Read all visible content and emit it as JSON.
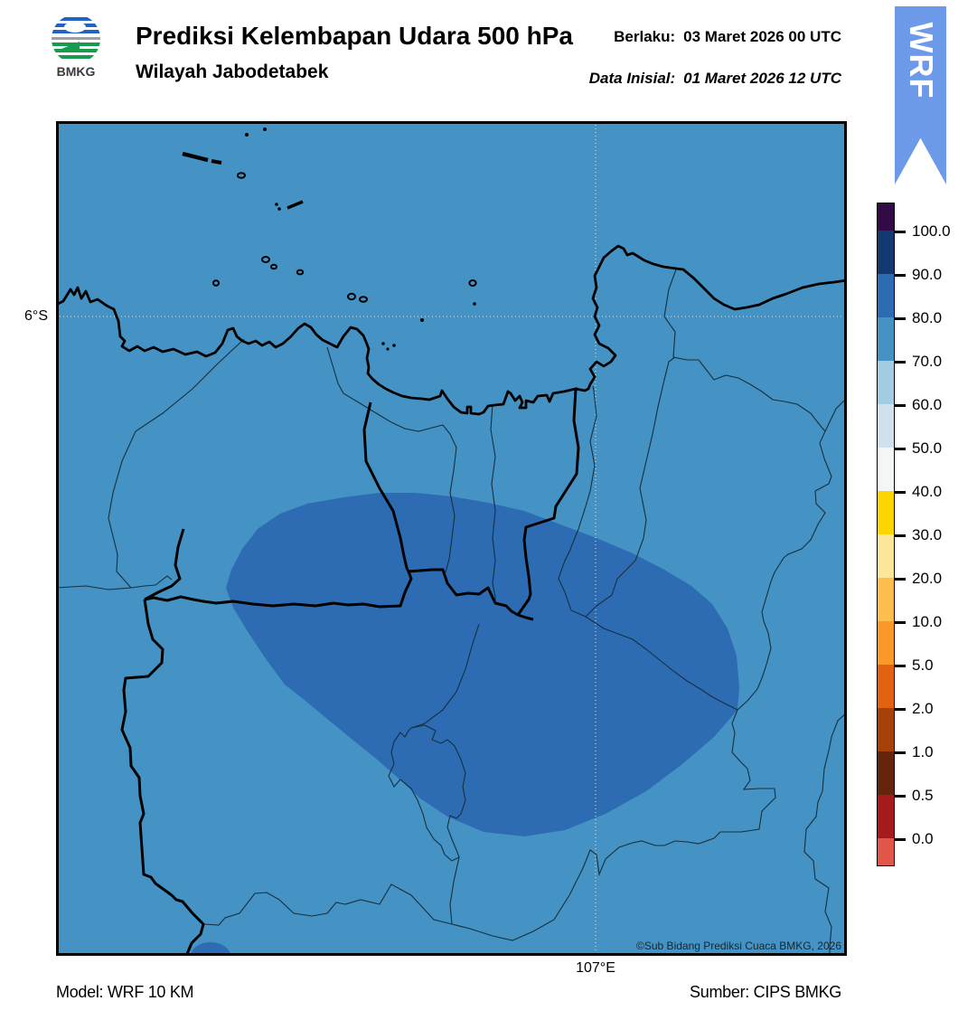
{
  "header": {
    "logo_text": "BMKG",
    "title": "Prediksi Kelembapan Udara 500 hPa",
    "subtitle": "Wilayah Jabodetabek",
    "valid_label": "Berlaku:",
    "valid_value": "03 Maret 2026 00 UTC",
    "init_label": "Data Inisial:",
    "init_value": "01 Maret 2026 12 UTC",
    "ribbon": "WRF"
  },
  "map": {
    "lat_label": "6°S",
    "lon_label": "107°E",
    "copyright": "©Sub Bidang Prediksi Cuaca BMKG, 2026",
    "sea_color": "#4493c4",
    "blob_color": "#2d6cb3"
  },
  "footer": {
    "model": "Model: WRF 10 KM",
    "source": "Sumber: CIPS BMKG"
  },
  "colorbar": {
    "ticks": [
      "100.0",
      "90.0",
      "80.0",
      "70.0",
      "60.0",
      "50.0",
      "40.0",
      "30.0",
      "20.0",
      "10.0",
      "5.0",
      "2.0",
      "1.0",
      "0.5",
      "0.0"
    ],
    "colors": [
      "#320a46",
      "#123a70",
      "#2d6cb3",
      "#4493c4",
      "#a3cbe2",
      "#cfe1ef",
      "#f3f6f5",
      "#fed501",
      "#fee699",
      "#fdbe4e",
      "#fa9828",
      "#e16310",
      "#a64207",
      "#65250a",
      "#a41a1d",
      "#e25549"
    ]
  },
  "chart_data": {
    "type": "heatmap",
    "title": "Prediksi Kelembapan Udara 500 hPa",
    "region": "Wilayah Jabodetabek",
    "variable": "Relative humidity at 500 hPa (%)",
    "valid_time": "03 Maret 2026 00 UTC",
    "initial_time": "01 Maret 2026 12 UTC",
    "model": "WRF 10 KM",
    "source": "CIPS BMKG",
    "levels": [
      0.0,
      0.5,
      1.0,
      2.0,
      5.0,
      10.0,
      20.0,
      30.0,
      40.0,
      50.0,
      60.0,
      70.0,
      80.0,
      90.0,
      100.0
    ],
    "field_summary": "Entire domain in 70-80% band with a large 80-90% area over central/southern Jabodetabek and a small 80-90% spot at the south edge",
    "gridlines": {
      "lat": "6°S",
      "lon": "107°E"
    }
  }
}
